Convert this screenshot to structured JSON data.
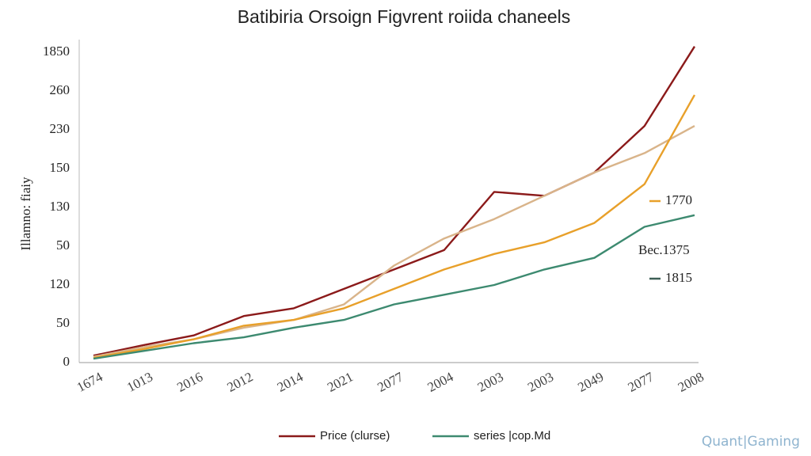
{
  "chart_data": {
    "type": "line",
    "title": "Batibiria Orsoign Figvrent roiida chaneels",
    "y_label": "Illamno: fiaiy",
    "categories": [
      "1674",
      "1013",
      "2016",
      "2012",
      "2014",
      "2021",
      "2077",
      "2004",
      "2003",
      "2003",
      "2049",
      "2077",
      "2008"
    ],
    "series": [
      {
        "name": "Price (clurse)",
        "color": "#8b1a1a",
        "values": [
          0.18,
          0.45,
          0.7,
          1.2,
          1.4,
          1.9,
          2.4,
          2.9,
          4.4,
          4.3,
          4.9,
          6.1,
          8.15
        ]
      },
      {
        "color": "#d9b48a",
        "values": [
          0.15,
          0.4,
          0.6,
          0.9,
          1.1,
          1.5,
          2.5,
          3.2,
          3.7,
          4.3,
          4.9,
          5.4,
          6.1
        ]
      },
      {
        "color": "#e8a02a",
        "values": [
          0.12,
          0.35,
          0.6,
          0.95,
          1.1,
          1.4,
          1.9,
          2.4,
          2.8,
          3.1,
          3.6,
          4.6,
          6.9
        ]
      },
      {
        "name": "series |cop.Md",
        "color": "#3d8a70",
        "values": [
          0.1,
          0.3,
          0.5,
          0.65,
          0.9,
          1.1,
          1.5,
          1.75,
          2.0,
          2.4,
          2.7,
          3.5,
          3.8
        ]
      }
    ],
    "ylim": [
      0,
      8.3
    ],
    "yticks": [
      {
        "value": 0,
        "label": "0"
      },
      {
        "value": 1,
        "label": "50"
      },
      {
        "value": 2,
        "label": "120"
      },
      {
        "value": 3,
        "label": "50"
      },
      {
        "value": 4,
        "label": "130"
      },
      {
        "value": 5,
        "label": "150"
      },
      {
        "value": 6,
        "label": "230"
      },
      {
        "value": 7,
        "label": "260"
      },
      {
        "value": 8,
        "label": "1850"
      }
    ],
    "annotations": [
      {
        "text": "1770",
        "color": "#e8a02a"
      },
      {
        "text": "Bec.1375"
      },
      {
        "text": "1815",
        "color": "#3d5f55"
      }
    ],
    "watermark": "Quant|Gaming"
  }
}
